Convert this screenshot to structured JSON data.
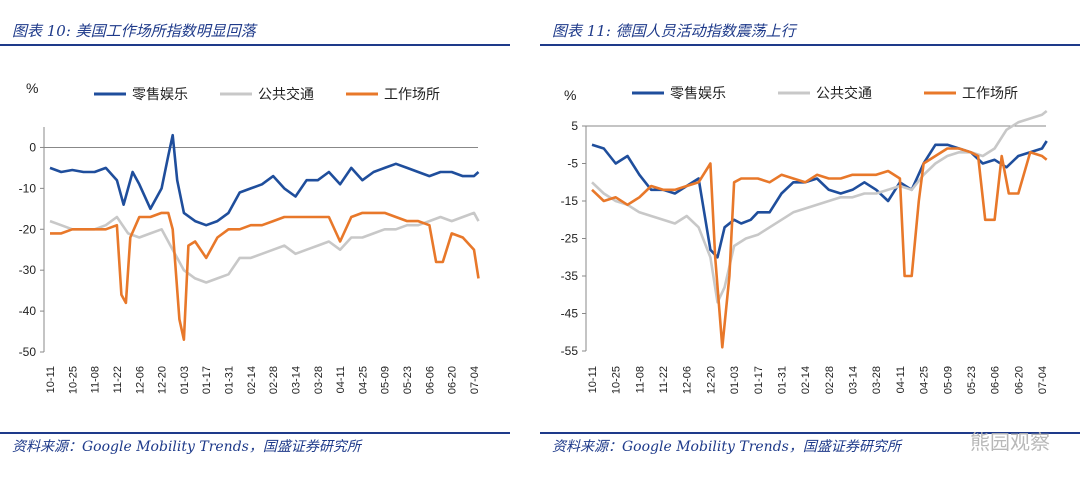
{
  "chart_data": [
    {
      "type": "line",
      "title": "图表 10: 美国工作场所指数明显回落",
      "ylabel": "%",
      "ylim": [
        -50,
        5
      ],
      "yticks": [
        0,
        -10,
        -20,
        -30,
        -40,
        -50
      ],
      "x_ticks": [
        "10-11",
        "10-25",
        "11-08",
        "11-22",
        "12-06",
        "12-20",
        "01-03",
        "01-17",
        "01-31",
        "02-14",
        "02-28",
        "03-14",
        "03-28",
        "04-11",
        "04-25",
        "05-09",
        "05-23",
        "06-06",
        "06-20",
        "07-04"
      ],
      "legend_position": "top",
      "source": "资料来源：Google Mobility Trends，国盛证券研究所",
      "series": [
        {
          "name": "零售娱乐",
          "color": "#1f4e9c",
          "x": [
            0,
            0.5,
            1,
            1.5,
            2,
            2.5,
            3,
            3.3,
            3.5,
            3.7,
            4,
            4.5,
            5,
            5.3,
            5.5,
            5.7,
            6,
            6.5,
            7,
            7.5,
            8,
            8.5,
            9,
            9.5,
            10,
            10.5,
            11,
            11.5,
            12,
            12.5,
            13,
            13.5,
            14,
            14.5,
            15,
            15.5,
            16,
            16.5,
            17,
            17.5,
            18,
            18.5,
            19,
            19.2
          ],
          "y": [
            -5,
            -6,
            -5.5,
            -6,
            -6,
            -5,
            -8,
            -14,
            -10,
            -6,
            -9,
            -15,
            -10,
            -2,
            3,
            -8,
            -16,
            -18,
            -19,
            -18,
            -16,
            -11,
            -10,
            -9,
            -7,
            -10,
            -12,
            -8,
            -8,
            -6,
            -9,
            -5,
            -8,
            -6,
            -5,
            -4,
            -5,
            -6,
            -7,
            -6,
            -6,
            -7,
            -7,
            -6
          ]
        },
        {
          "name": "公共交通",
          "color": "#c8c8c8",
          "x": [
            0,
            0.5,
            1,
            1.5,
            2,
            2.5,
            3,
            3.5,
            4,
            4.5,
            5,
            5.5,
            6,
            6.5,
            7,
            7.5,
            8,
            8.5,
            9,
            9.5,
            10,
            10.5,
            11,
            11.5,
            12,
            12.5,
            13,
            13.5,
            14,
            14.5,
            15,
            15.5,
            16,
            16.5,
            17,
            17.5,
            18,
            18.5,
            19,
            19.2
          ],
          "y": [
            -18,
            -19,
            -20,
            -20,
            -20,
            -19,
            -17,
            -21,
            -22,
            -21,
            -20,
            -25,
            -30,
            -32,
            -33,
            -32,
            -31,
            -27,
            -27,
            -26,
            -25,
            -24,
            -26,
            -25,
            -24,
            -23,
            -25,
            -22,
            -22,
            -21,
            -20,
            -20,
            -19,
            -19,
            -18,
            -17,
            -18,
            -17,
            -16,
            -18
          ]
        },
        {
          "name": "工作场所",
          "color": "#e8782a",
          "x": [
            0,
            0.5,
            1,
            1.5,
            2,
            2.5,
            3,
            3.2,
            3.4,
            3.6,
            4,
            4.5,
            5,
            5.3,
            5.5,
            5.8,
            6,
            6.2,
            6.5,
            7,
            7.5,
            8,
            8.5,
            9,
            9.5,
            10,
            10.5,
            11,
            11.5,
            12,
            12.5,
            13,
            13.5,
            14,
            14.5,
            15,
            15.5,
            16,
            16.5,
            17,
            17.3,
            17.6,
            18,
            18.5,
            19,
            19.2
          ],
          "y": [
            -21,
            -21,
            -20,
            -20,
            -20,
            -20,
            -19,
            -36,
            -38,
            -22,
            -17,
            -17,
            -16,
            -16,
            -20,
            -42,
            -47,
            -24,
            -23,
            -27,
            -22,
            -20,
            -20,
            -19,
            -19,
            -18,
            -17,
            -17,
            -17,
            -17,
            -17,
            -23,
            -17,
            -16,
            -16,
            -16,
            -17,
            -18,
            -18,
            -19,
            -28,
            -28,
            -21,
            -22,
            -25,
            -32
          ]
        }
      ]
    },
    {
      "type": "line",
      "title": "图表 11: 德国人员活动指数震荡上行",
      "ylabel": "%",
      "ylim": [
        -55,
        5
      ],
      "yticks": [
        5,
        -5,
        -15,
        -25,
        -35,
        -45,
        -55
      ],
      "x_ticks": [
        "10-11",
        "10-25",
        "11-08",
        "11-22",
        "12-06",
        "12-20",
        "01-03",
        "01-17",
        "01-31",
        "02-14",
        "02-28",
        "03-14",
        "03-28",
        "04-11",
        "04-25",
        "05-09",
        "05-23",
        "06-06",
        "06-20",
        "07-04"
      ],
      "legend_position": "top",
      "source": "资料来源：Google Mobility Trends，国盛证券研究所",
      "watermark": "熊园观察",
      "series": [
        {
          "name": "零售娱乐",
          "color": "#1f4e9c",
          "x": [
            0,
            0.5,
            1,
            1.5,
            2,
            2.5,
            3,
            3.5,
            4,
            4.5,
            5,
            5.3,
            5.6,
            6,
            6.3,
            6.7,
            7,
            7.5,
            8,
            8.5,
            9,
            9.5,
            10,
            10.5,
            11,
            11.5,
            12,
            12.5,
            13,
            13.5,
            14,
            14.5,
            15,
            15.5,
            16,
            16.5,
            17,
            17.5,
            18,
            18.5,
            19,
            19.2
          ],
          "y": [
            0,
            -1,
            -5,
            -3,
            -8,
            -12,
            -12,
            -13,
            -11,
            -9,
            -28,
            -30,
            -22,
            -20,
            -21,
            -20,
            -18,
            -18,
            -13,
            -10,
            -10,
            -9,
            -12,
            -13,
            -12,
            -10,
            -12,
            -15,
            -10,
            -12,
            -5,
            0,
            0,
            -1,
            -2,
            -5,
            -4,
            -6,
            -3,
            -2,
            -1,
            1
          ]
        },
        {
          "name": "公共交通",
          "color": "#c8c8c8",
          "x": [
            0,
            0.5,
            1,
            1.5,
            2,
            2.5,
            3,
            3.5,
            4,
            4.5,
            5,
            5.3,
            5.6,
            6,
            6.5,
            7,
            7.5,
            8,
            8.5,
            9,
            9.5,
            10,
            10.5,
            11,
            11.5,
            12,
            12.5,
            13,
            13.5,
            14,
            14.5,
            15,
            15.5,
            16,
            16.5,
            17,
            17.5,
            18,
            18.5,
            19,
            19.2
          ],
          "y": [
            -10,
            -13,
            -15,
            -16,
            -18,
            -19,
            -20,
            -21,
            -19,
            -22,
            -30,
            -42,
            -38,
            -27,
            -25,
            -24,
            -22,
            -20,
            -18,
            -17,
            -16,
            -15,
            -14,
            -14,
            -13,
            -13,
            -12,
            -11,
            -12,
            -8,
            -5,
            -3,
            -2,
            -2,
            -3,
            -1,
            4,
            6,
            7,
            8,
            9
          ]
        },
        {
          "name": "工作场所",
          "color": "#e8782a",
          "x": [
            0,
            0.5,
            1,
            1.5,
            2,
            2.5,
            3,
            3.5,
            4,
            4.5,
            5,
            5.2,
            5.5,
            5.8,
            6,
            6.3,
            6.6,
            7,
            7.5,
            8,
            8.5,
            9,
            9.5,
            10,
            10.5,
            11,
            11.5,
            12,
            12.5,
            13,
            13.2,
            13.5,
            13.8,
            14,
            14.5,
            15,
            15.5,
            16,
            16.3,
            16.6,
            17,
            17.3,
            17.6,
            18,
            18.5,
            19,
            19.2
          ],
          "y": [
            -12,
            -15,
            -14,
            -16,
            -14,
            -11,
            -12,
            -12,
            -11,
            -10,
            -5,
            -30,
            -54,
            -35,
            -10,
            -9,
            -9,
            -9,
            -10,
            -8,
            -9,
            -10,
            -8,
            -9,
            -9,
            -8,
            -8,
            -8,
            -7,
            -9,
            -35,
            -35,
            -15,
            -5,
            -3,
            -1,
            -1,
            -2,
            -3,
            -20,
            -20,
            -3,
            -13,
            -13,
            -2,
            -3,
            -4
          ]
        }
      ]
    }
  ]
}
